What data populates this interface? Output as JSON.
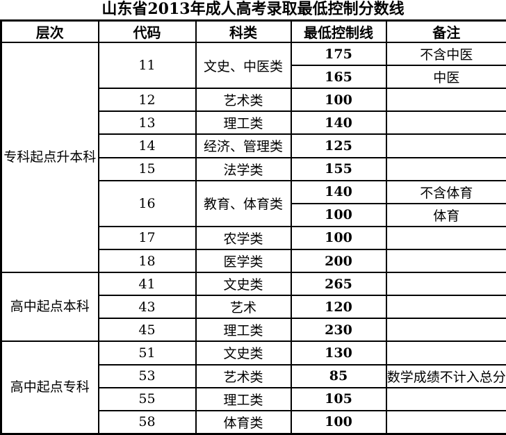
{
  "title": "山东省2013年成人高考录取最低控制分数线",
  "colors": {
    "border": "#000000",
    "background": "#ffffff",
    "text": "#000000"
  },
  "table": {
    "headers": [
      "层次",
      "代码",
      "科类",
      "最低控制线",
      "备注"
    ],
    "sections": [
      {
        "level": "专科起点升本科",
        "groups": [
          {
            "code": "11",
            "category": "文史、中医类",
            "rows": [
              {
                "score": "175",
                "remark": "不含中医"
              },
              {
                "score": "165",
                "remark": "中医"
              }
            ]
          },
          {
            "code": "12",
            "category": "艺术类",
            "rows": [
              {
                "score": "100",
                "remark": ""
              }
            ]
          },
          {
            "code": "13",
            "category": "理工类",
            "rows": [
              {
                "score": "140",
                "remark": ""
              }
            ]
          },
          {
            "code": "14",
            "category": "经济、管理类",
            "rows": [
              {
                "score": "125",
                "remark": ""
              }
            ]
          },
          {
            "code": "15",
            "category": "法学类",
            "rows": [
              {
                "score": "155",
                "remark": ""
              }
            ]
          },
          {
            "code": "16",
            "category": "教育、体育类",
            "rows": [
              {
                "score": "140",
                "remark": "不含体育"
              },
              {
                "score": "100",
                "remark": "体育"
              }
            ]
          },
          {
            "code": "17",
            "category": "农学类",
            "rows": [
              {
                "score": "100",
                "remark": ""
              }
            ]
          },
          {
            "code": "18",
            "category": "医学类",
            "rows": [
              {
                "score": "200",
                "remark": ""
              }
            ]
          }
        ]
      },
      {
        "level": "高中起点本科",
        "groups": [
          {
            "code": "41",
            "category": "文史类",
            "rows": [
              {
                "score": "265",
                "remark": ""
              }
            ]
          },
          {
            "code": "43",
            "category": "艺术",
            "rows": [
              {
                "score": "120",
                "remark": ""
              }
            ]
          },
          {
            "code": "45",
            "category": "理工类",
            "rows": [
              {
                "score": "230",
                "remark": ""
              }
            ]
          }
        ]
      },
      {
        "level": "高中起点专科",
        "groups": [
          {
            "code": "51",
            "category": "文史类",
            "rows": [
              {
                "score": "130",
                "remark": ""
              }
            ]
          },
          {
            "code": "53",
            "category": "艺术类",
            "rows": [
              {
                "score": "85",
                "remark": "数学成绩不计入总分"
              }
            ]
          },
          {
            "code": "55",
            "category": "理工类",
            "rows": [
              {
                "score": "105",
                "remark": ""
              }
            ]
          },
          {
            "code": "58",
            "category": "体育类",
            "rows": [
              {
                "score": "100",
                "remark": ""
              }
            ]
          }
        ]
      }
    ]
  }
}
